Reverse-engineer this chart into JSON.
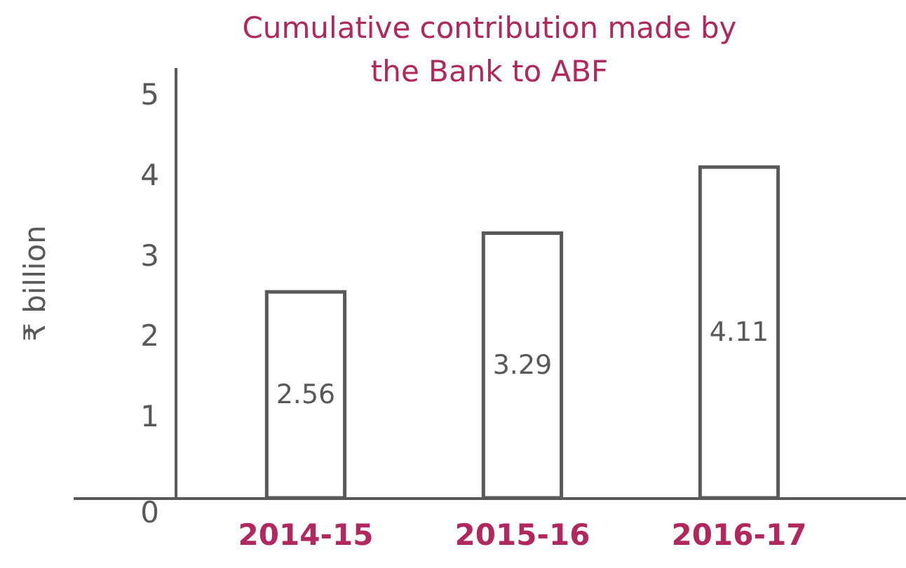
{
  "chart_data": {
    "type": "bar",
    "title": "Cumulative contribution made by the Bank to ABF",
    "ylabel": "₹ billion",
    "categories": [
      "2014-15",
      "2015-16",
      "2016-17"
    ],
    "values": [
      2.56,
      3.29,
      4.11
    ],
    "color": "#ffffff",
    "data_labels": true,
    "ylim": [
      0,
      5.35
    ],
    "yticks": [
      0,
      1,
      2,
      3,
      4,
      5
    ]
  }
}
